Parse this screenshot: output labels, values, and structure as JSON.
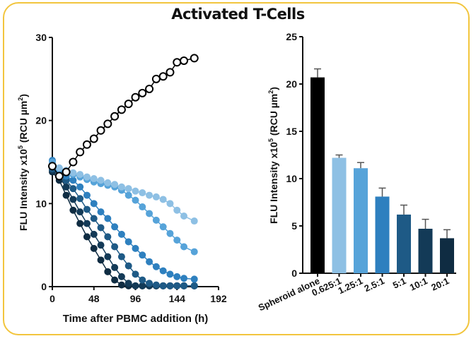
{
  "title": "Activated T-Cells",
  "chart_data": [
    {
      "type": "line",
      "xlabel": "Time after PBMC addition (h)",
      "ylabel": "FLU Intensity x10",
      "ylabel_sup": "5",
      "ylabel_unit": " (RCU µm",
      "ylabel_unit_sup": "2",
      "ylabel_end": ")",
      "xlim": [
        0,
        192
      ],
      "ylim": [
        0,
        30
      ],
      "xticks": [
        0,
        48,
        96,
        144,
        192
      ],
      "yticks": [
        0,
        10,
        20,
        30
      ],
      "grid": false,
      "x": [
        0,
        8,
        16,
        24,
        32,
        40,
        48,
        56,
        64,
        72,
        80,
        88,
        96,
        104,
        112,
        120,
        128,
        136,
        144,
        152,
        164
      ],
      "series": [
        {
          "key": "spheroid_alone",
          "color": "#000000",
          "marker": "open-circle",
          "values": [
            14.5,
            13.3,
            13.8,
            15.0,
            16.2,
            17.1,
            17.8,
            18.8,
            19.6,
            20.5,
            21.3,
            22.0,
            22.8,
            23.3,
            23.8,
            25.0,
            25.3,
            25.8,
            27.0,
            27.2,
            27.5
          ]
        },
        {
          "key": "0.625:1",
          "color": "#8ec0e4",
          "marker": "filled-circle",
          "values": [
            14.5,
            14.3,
            14.0,
            13.7,
            13.5,
            13.2,
            13.0,
            12.8,
            12.5,
            12.3,
            12.0,
            11.8,
            11.5,
            11.3,
            11.0,
            10.8,
            10.5,
            10.0,
            9.2,
            8.5,
            7.9
          ]
        },
        {
          "key": "1.25:1",
          "color": "#56a3d9",
          "marker": "filled-circle",
          "values": [
            15.0,
            14.2,
            13.8,
            13.5,
            13.2,
            12.9,
            12.6,
            12.4,
            12.2,
            12.0,
            11.6,
            11.0,
            10.4,
            9.6,
            8.8,
            8.0,
            7.2,
            6.4,
            5.6,
            4.8,
            4.2
          ]
        },
        {
          "key": "2.5:1",
          "color": "#2e80bf",
          "marker": "filled-circle",
          "values": [
            15.2,
            13.9,
            13.3,
            12.8,
            12.0,
            11.0,
            10.0,
            9.0,
            8.2,
            7.2,
            6.3,
            5.4,
            4.6,
            3.8,
            3.0,
            2.4,
            1.9,
            1.5,
            1.2,
            1.0,
            0.9
          ]
        },
        {
          "key": "5:1",
          "color": "#1e5a86",
          "marker": "filled-circle",
          "values": [
            14.2,
            13.5,
            12.8,
            11.8,
            10.6,
            9.3,
            8.2,
            7.1,
            6.0,
            4.8,
            3.6,
            2.5,
            1.5,
            0.8,
            0.4,
            0.2,
            0.1,
            0.1,
            0.1,
            0.1,
            0.1
          ]
        },
        {
          "key": "10:1",
          "color": "#133a57",
          "marker": "filled-circle",
          "values": [
            14.0,
            13.2,
            12.0,
            10.5,
            9.0,
            7.6,
            6.3,
            5.0,
            3.6,
            2.3,
            1.2,
            0.4,
            0.1,
            0.1,
            0.1,
            0.1,
            0.1,
            0.1,
            0.1,
            0.1,
            0.1
          ]
        },
        {
          "key": "20:1",
          "color": "#0f2c42",
          "marker": "filled-circle",
          "values": [
            13.8,
            12.8,
            11.0,
            9.2,
            7.6,
            6.0,
            4.6,
            3.2,
            1.8,
            0.8,
            0.2,
            0.1,
            0.1,
            0.1,
            0.1,
            0.1,
            0.1,
            0.1,
            0.1,
            0.1,
            0.1
          ]
        }
      ]
    },
    {
      "type": "bar",
      "ylabel": "FLU Intensity x10",
      "ylabel_sup": "5",
      "ylabel_unit": " (RCU µm",
      "ylabel_unit_sup": "2",
      "ylabel_end": ")",
      "ylim": [
        0,
        25
      ],
      "yticks": [
        0,
        5,
        10,
        15,
        20,
        25
      ],
      "grid": false,
      "categories": [
        "Spheroid alone",
        "0.625:1",
        "1.25:1",
        "2.5:1",
        "5:1",
        "10:1",
        "20:1"
      ],
      "values": [
        20.7,
        12.2,
        11.1,
        8.1,
        6.2,
        4.7,
        3.7
      ],
      "errors": [
        0.9,
        0.3,
        0.6,
        0.9,
        1.0,
        1.0,
        0.9
      ],
      "colors": [
        "#000000",
        "#8ec0e4",
        "#56a3d9",
        "#2e80bf",
        "#1e5a86",
        "#133a57",
        "#0f2c42"
      ]
    }
  ]
}
